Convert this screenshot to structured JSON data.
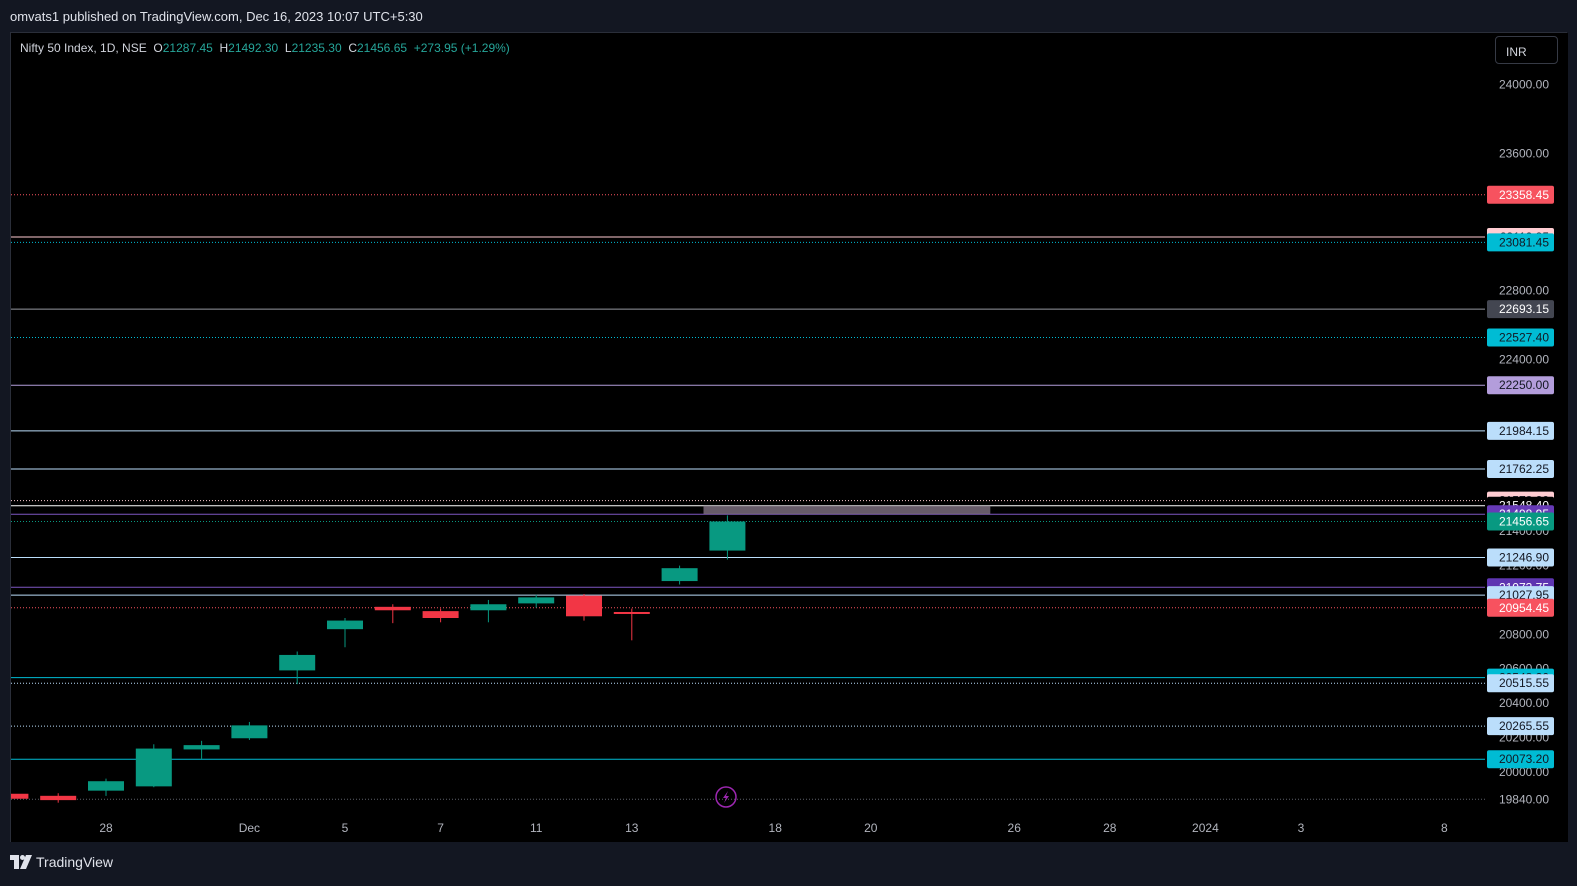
{
  "header": {
    "publisher_text": "omvats1 published on TradingView.com, Dec 16, 2023 10:07 UTC+5:30"
  },
  "legend": {
    "symbol": "Nifty 50 Index, 1D, NSE",
    "o_label": "O",
    "o_value": "21287.45",
    "h_label": "H",
    "h_value": "21492.30",
    "l_label": "L",
    "l_value": "21235.30",
    "c_label": "C",
    "c_value": "21456.65",
    "change": "+273.95 (+1.29%)"
  },
  "currency": "INR",
  "footer": {
    "brand": "TradingView"
  },
  "colors": {
    "up": "#089981",
    "down": "#f23645",
    "background": "#000000",
    "panel": "#131722"
  },
  "chart_data": {
    "type": "candlestick",
    "title": "Nifty 50 Index, 1D, NSE",
    "ylim": [
      19760,
      24300
    ],
    "y_ticks": [
      24000,
      23600,
      22800,
      22400,
      21400,
      21200,
      20800,
      20600,
      20400,
      20200,
      20000,
      19840
    ],
    "y_tick_labels": [
      "24000.00",
      "23600.00",
      "22800.00",
      "22400.00",
      "21400.00",
      "21200.00",
      "20800.00",
      "20600.00",
      "20400.00",
      "20200.00",
      "20000.00",
      "19840.00"
    ],
    "x_tick_labels": [
      {
        "day": 0,
        "label": "28"
      },
      {
        "day": 3,
        "label": "Dec"
      },
      {
        "day": 5,
        "label": "5"
      },
      {
        "day": 7,
        "label": "7"
      },
      {
        "day": 9,
        "label": "11"
      },
      {
        "day": 11,
        "label": "13"
      },
      {
        "day": 14,
        "label": "18"
      },
      {
        "day": 16,
        "label": "20"
      },
      {
        "day": 19,
        "label": "26"
      },
      {
        "day": 21,
        "label": "28"
      },
      {
        "day": 23,
        "label": "2024"
      },
      {
        "day": 25,
        "label": "3"
      },
      {
        "day": 28,
        "label": "8"
      }
    ],
    "candles": [
      {
        "day": -2,
        "o": 19872,
        "h": 19890,
        "l": 19845,
        "c": 19843
      },
      {
        "day": -1,
        "o": 19860,
        "h": 19875,
        "l": 19820,
        "c": 19835
      },
      {
        "day": 0,
        "o": 19890,
        "h": 19960,
        "l": 19860,
        "c": 19945
      },
      {
        "day": 1,
        "o": 19915,
        "h": 20160,
        "l": 19910,
        "c": 20135
      },
      {
        "day": 2,
        "o": 20130,
        "h": 20180,
        "l": 20075,
        "c": 20155
      },
      {
        "day": 3,
        "o": 20195,
        "h": 20290,
        "l": 20185,
        "c": 20270
      },
      {
        "day": 4,
        "o": 20590,
        "h": 20700,
        "l": 20510,
        "c": 20680
      },
      {
        "day": 5,
        "o": 20830,
        "h": 20895,
        "l": 20725,
        "c": 20880
      },
      {
        "day": 6,
        "o": 20960,
        "h": 20975,
        "l": 20865,
        "c": 20940
      },
      {
        "day": 7,
        "o": 20935,
        "h": 20950,
        "l": 20870,
        "c": 20895
      },
      {
        "day": 8,
        "o": 20940,
        "h": 21000,
        "l": 20870,
        "c": 20975
      },
      {
        "day": 9,
        "o": 20980,
        "h": 21030,
        "l": 20955,
        "c": 21015
      },
      {
        "day": 10,
        "o": 21025,
        "h": 21035,
        "l": 20880,
        "c": 20905
      },
      {
        "day": 11,
        "o": 20930,
        "h": 20950,
        "l": 20765,
        "c": 20925
      },
      {
        "day": 12,
        "o": 21110,
        "h": 21200,
        "l": 21090,
        "c": 21185
      },
      {
        "day": 13,
        "o": 21287.45,
        "h": 21492.3,
        "l": 21235.3,
        "c": 21456.65
      }
    ],
    "levels": [
      {
        "price": 23358.45,
        "color": "#f7525f",
        "style": "dotted",
        "label": "23358.45",
        "label_bg": "#f7525f",
        "label_fg": "#ffffff"
      },
      {
        "price": 23112.85,
        "color": "#ffcdd2",
        "style": "solid",
        "label": "23112.85",
        "label_bg": "#ffcdd2",
        "label_fg": "#131722"
      },
      {
        "price": 23081.45,
        "color": "#00bcd4",
        "style": "dotted",
        "label": "23081.45",
        "label_bg": "#00bcd4",
        "label_fg": "#131722"
      },
      {
        "price": 22693.15,
        "color": "#9598a1",
        "style": "solid",
        "label": "22693.15",
        "label_bg": "#434651",
        "label_fg": "#ffffff"
      },
      {
        "price": 22527.4,
        "color": "#00bcd4",
        "style": "dotted",
        "label": "22527.40",
        "label_bg": "#00bcd4",
        "label_fg": "#131722"
      },
      {
        "price": 22250.0,
        "color": "#b39ddb",
        "style": "solid",
        "label": "22250.00",
        "label_bg": "#b39ddb",
        "label_fg": "#131722"
      },
      {
        "price": 21984.15,
        "color": "#bbdefb",
        "style": "solid",
        "label": "21984.15",
        "label_bg": "#bbdefb",
        "label_fg": "#131722"
      },
      {
        "price": 21762.25,
        "color": "#bbdefb",
        "style": "solid",
        "label": "21762.25",
        "label_bg": "#bbdefb",
        "label_fg": "#131722"
      },
      {
        "price": 21578.2,
        "color": "#ffcdd2",
        "style": "dotted",
        "label": "21578.20",
        "label_bg": "#ffcdd2",
        "label_fg": "#131722"
      },
      {
        "price": 21548.4,
        "color": "#ffffff",
        "style": "solid",
        "label": "21548.40",
        "label_bg": "#000000",
        "label_fg": "#ffffff"
      },
      {
        "price": 21498.95,
        "color": "#7e57c2",
        "style": "solid",
        "label": "21498.95",
        "label_bg": "#673ab7",
        "label_fg": "#ffffff"
      },
      {
        "price": 21456.65,
        "color": "#089981",
        "style": "dotted",
        "label": "21456.65",
        "label_bg": "#089981",
        "label_fg": "#ffffff"
      },
      {
        "price": 21246.9,
        "color": "#bbdefb",
        "style": "solid",
        "label": "21246.90",
        "label_bg": "#bbdefb",
        "label_fg": "#131722"
      },
      {
        "price": 21073.75,
        "color": "#7e57c2",
        "style": "solid",
        "label": "21073.75",
        "label_bg": "#5e35b1",
        "label_fg": "#ffffff"
      },
      {
        "price": 21027.95,
        "color": "#bbdefb",
        "style": "solid",
        "label": "21027.95",
        "label_bg": "#bbdefb",
        "label_fg": "#131722"
      },
      {
        "price": 20954.45,
        "color": "#f7525f",
        "style": "dotted",
        "label": "20954.45",
        "label_bg": "#f7525f",
        "label_fg": "#ffffff"
      },
      {
        "price": 20548.2,
        "color": "#00bcd4",
        "style": "solid",
        "label": "20548.20",
        "label_bg": "#00bcd4",
        "label_fg": "#131722"
      },
      {
        "price": 20515.55,
        "color": "#bbdefb",
        "style": "dotted",
        "label": "20515.55",
        "label_bg": "#bbdefb",
        "label_fg": "#131722"
      },
      {
        "price": 20265.55,
        "color": "#bbdefb",
        "style": "dotted",
        "label": "20265.55",
        "label_bg": "#bbdefb",
        "label_fg": "#131722"
      },
      {
        "price": 20073.2,
        "color": "#00bcd4",
        "style": "solid",
        "label": "20073.20",
        "label_bg": "#00bcd4",
        "label_fg": "#131722"
      },
      {
        "price": 19840.0,
        "color": "#5d606b",
        "style": "dotted"
      }
    ],
    "zones": [
      {
        "price_low": 21498.95,
        "price_high": 21548.4,
        "day_start": 12.5,
        "day_end": 18.5,
        "color": "#8a7a8c"
      }
    ]
  }
}
